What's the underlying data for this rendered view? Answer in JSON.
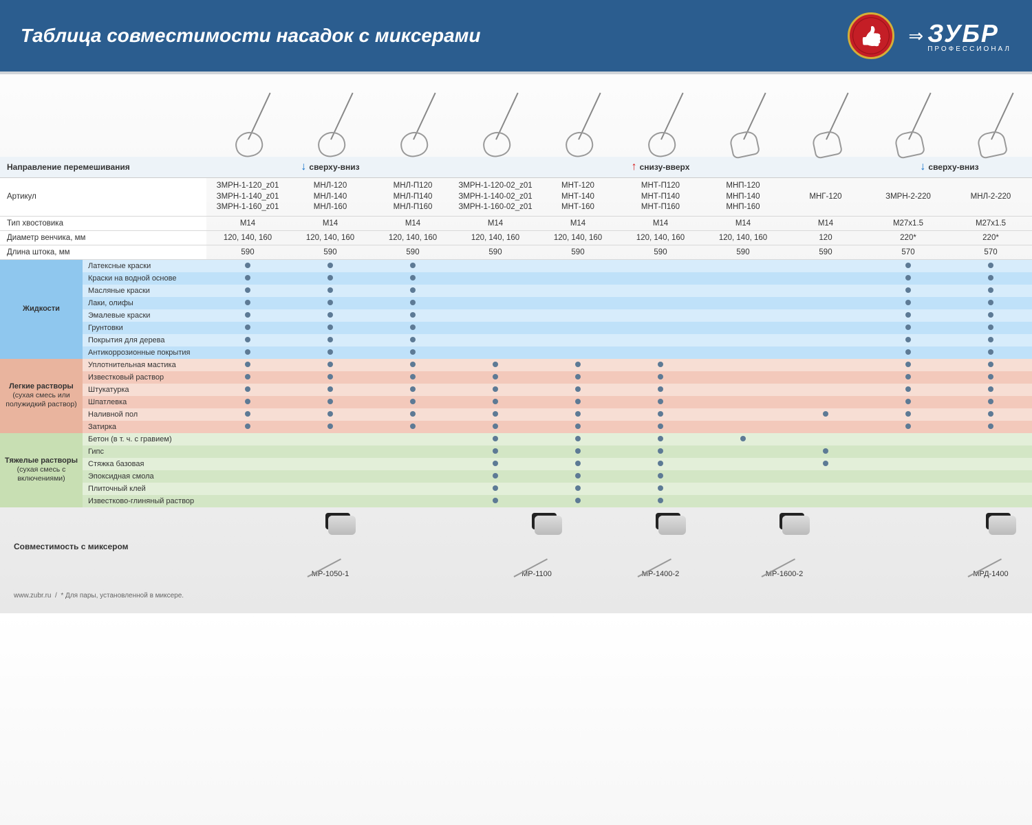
{
  "title": "Таблица совместимости насадок с миксерами",
  "brand": {
    "name": "ЗУБР",
    "sub": "ПРОФЕССИОНАЛ"
  },
  "dir_label": "Направление перемешивания",
  "dir_groups": [
    {
      "label": "сверху-вниз",
      "arrow": "down",
      "span": 3
    },
    {
      "label": "снизу-вверх",
      "arrow": "up",
      "span": 5
    },
    {
      "label": "сверху-вниз",
      "arrow": "down",
      "span": 2
    }
  ],
  "article_label": "Артикул",
  "columns": [
    "ЗМРН-1-120_z01\nЗМРН-1-140_z01\nЗМРН-1-160_z01",
    "МНЛ-120\nМНЛ-140\nМНЛ-160",
    "МНЛ-П120\nМНЛ-П140\nМНЛ-П160",
    "ЗМРН-1-120-02_z01\nЗМРН-1-140-02_z01\nЗМРН-1-160-02_z01",
    "МНТ-120\nМНТ-140\nМНТ-160",
    "МНТ-П120\nМНТ-П140\nМНТ-П160",
    "МНП-120\nМНП-140\nМНП-160",
    "МНГ-120",
    "ЗМРН-2-220",
    "МНЛ-2-220"
  ],
  "specs": [
    {
      "label": "Тип хвостовика",
      "vals": [
        "M14",
        "M14",
        "M14",
        "M14",
        "M14",
        "M14",
        "M14",
        "M14",
        "M27x1.5",
        "M27x1.5"
      ]
    },
    {
      "label": "Диаметр венчика, мм",
      "vals": [
        "120, 140, 160",
        "120, 140, 160",
        "120, 140, 160",
        "120, 140, 160",
        "120, 140, 160",
        "120, 140, 160",
        "120, 140, 160",
        "120",
        "220*",
        "220*"
      ]
    },
    {
      "label": "Длина штока, мм",
      "vals": [
        "590",
        "590",
        "590",
        "590",
        "590",
        "590",
        "590",
        "590",
        "570",
        "570"
      ]
    }
  ],
  "groups": [
    {
      "head": "Жидкости",
      "sub": "",
      "cls": "liq",
      "rows": [
        {
          "m": "Латексные краски",
          "d": [
            1,
            1,
            1,
            0,
            0,
            0,
            0,
            0,
            1,
            1
          ]
        },
        {
          "m": "Краски на водной основе",
          "d": [
            1,
            1,
            1,
            0,
            0,
            0,
            0,
            0,
            1,
            1
          ]
        },
        {
          "m": "Масляные краски",
          "d": [
            1,
            1,
            1,
            0,
            0,
            0,
            0,
            0,
            1,
            1
          ]
        },
        {
          "m": "Лаки, олифы",
          "d": [
            1,
            1,
            1,
            0,
            0,
            0,
            0,
            0,
            1,
            1
          ]
        },
        {
          "m": "Эмалевые краски",
          "d": [
            1,
            1,
            1,
            0,
            0,
            0,
            0,
            0,
            1,
            1
          ]
        },
        {
          "m": "Грунтовки",
          "d": [
            1,
            1,
            1,
            0,
            0,
            0,
            0,
            0,
            1,
            1
          ]
        },
        {
          "m": "Покрытия для дерева",
          "d": [
            1,
            1,
            1,
            0,
            0,
            0,
            0,
            0,
            1,
            1
          ]
        },
        {
          "m": "Антикоррозионные покрытия",
          "d": [
            1,
            1,
            1,
            0,
            0,
            0,
            0,
            0,
            1,
            1
          ]
        }
      ]
    },
    {
      "head": "Легкие растворы",
      "sub": "(сухая смесь или полужидкий раствор)",
      "cls": "lig",
      "rows": [
        {
          "m": "Уплотнительная мастика",
          "d": [
            1,
            1,
            1,
            1,
            1,
            1,
            0,
            0,
            1,
            1
          ]
        },
        {
          "m": "Известковый раствор",
          "d": [
            1,
            1,
            1,
            1,
            1,
            1,
            0,
            0,
            1,
            1
          ]
        },
        {
          "m": "Штукатурка",
          "d": [
            1,
            1,
            1,
            1,
            1,
            1,
            0,
            0,
            1,
            1
          ]
        },
        {
          "m": "Шпатлевка",
          "d": [
            1,
            1,
            1,
            1,
            1,
            1,
            0,
            0,
            1,
            1
          ]
        },
        {
          "m": "Наливной пол",
          "d": [
            1,
            1,
            1,
            1,
            1,
            1,
            0,
            1,
            1,
            1
          ]
        },
        {
          "m": "Затирка",
          "d": [
            1,
            1,
            1,
            1,
            1,
            1,
            0,
            0,
            1,
            1
          ]
        }
      ]
    },
    {
      "head": "Тяжелые растворы",
      "sub": "(сухая смесь с включениями)",
      "cls": "hvy",
      "rows": [
        {
          "m": "Бетон (в т. ч. с гравием)",
          "d": [
            0,
            0,
            0,
            1,
            1,
            1,
            1,
            0,
            0,
            0
          ]
        },
        {
          "m": "Гипс",
          "d": [
            0,
            0,
            0,
            1,
            1,
            1,
            0,
            1,
            0,
            0
          ]
        },
        {
          "m": "Стяжка базовая",
          "d": [
            0,
            0,
            0,
            1,
            1,
            1,
            0,
            1,
            0,
            0
          ]
        },
        {
          "m": "Эпоксидная смола",
          "d": [
            0,
            0,
            0,
            1,
            1,
            1,
            0,
            0,
            0,
            0
          ]
        },
        {
          "m": "Плиточный клей",
          "d": [
            0,
            0,
            0,
            1,
            1,
            1,
            0,
            0,
            0,
            0
          ]
        },
        {
          "m": "Известково-глиняный раствор",
          "d": [
            0,
            0,
            0,
            1,
            1,
            1,
            0,
            0,
            0,
            0
          ]
        }
      ]
    }
  ],
  "footer_label": "Совместимость с миксером",
  "mixers": [
    "МР-1050-1",
    "МР-1100",
    "МР-1400-2",
    "МР-1600-2",
    "",
    "МРД-1400"
  ],
  "mixer_spans": [
    3,
    2,
    1,
    2,
    1,
    1
  ],
  "footnote_site": "www.zubr.ru",
  "footnote_text": "* Для пары, установленной в миксере."
}
